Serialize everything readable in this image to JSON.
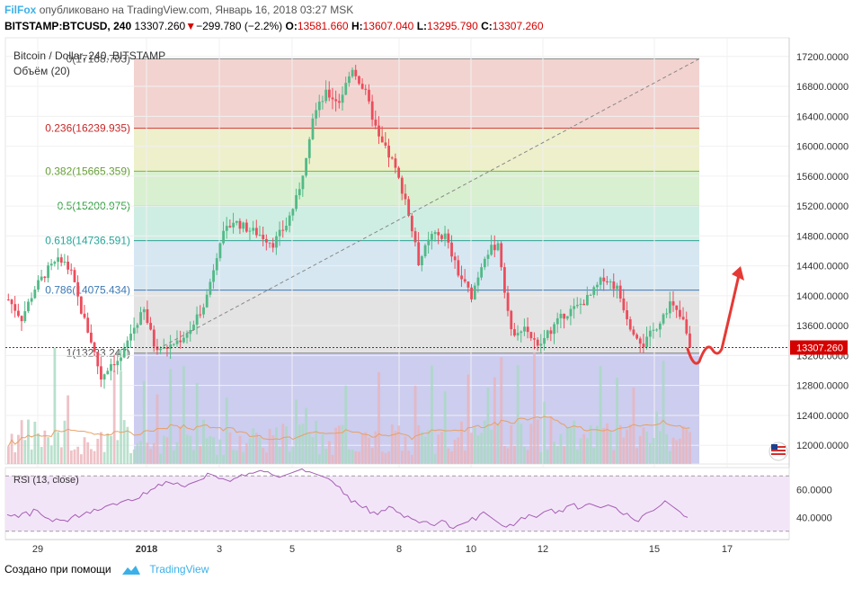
{
  "header": {
    "brand": "FilFox",
    "published": "опубликовано на TradingView.com, Январь 16, 2018 03:27 MSK"
  },
  "quote": {
    "symbol": "BITSTAMP:BTCUSD, 240",
    "last": "13307.260",
    "change": "−299.780 (−2.2%)",
    "o_label": "O:",
    "o": "13581.660",
    "h_label": "H:",
    "h": "13607.040",
    "l_label": "L:",
    "l": "13295.790",
    "c_label": "C:",
    "c": "13307.260"
  },
  "footer": {
    "created": "Создано при помощи",
    "tradingview": "TradingView"
  },
  "colors": {
    "up": "#53b987",
    "down": "#eb4d5c",
    "price_line": "#d50000",
    "rsi_line": "#a45fb3",
    "volume_ma": "#e8a064"
  },
  "chart_data": {
    "type": "candlestick",
    "pane_title": "Bitcoin / Dollar, 240, BITSTAMP",
    "volume_label": "Объём (20)",
    "current_price": 13307.26,
    "current_price_label": "13307.260",
    "y_ticks": [
      {
        "v": 17200,
        "label": "17200.0000"
      },
      {
        "v": 16800,
        "label": "16800.0000"
      },
      {
        "v": 16400,
        "label": "16400.0000"
      },
      {
        "v": 16000,
        "label": "16000.0000"
      },
      {
        "v": 15600,
        "label": "15600.0000"
      },
      {
        "v": 15200,
        "label": "15200.0000"
      },
      {
        "v": 14800,
        "label": "14800.0000"
      },
      {
        "v": 14400,
        "label": "14400.0000"
      },
      {
        "v": 14000,
        "label": "14000.0000"
      },
      {
        "v": 13600,
        "label": "13600.0000"
      },
      {
        "v": 13200,
        "label": "13200.0000"
      },
      {
        "v": 12800,
        "label": "12800.0000"
      },
      {
        "v": 12400,
        "label": "12400.0000"
      },
      {
        "v": 12000,
        "label": "12000.0000"
      }
    ],
    "y_range": [
      11750,
      17450
    ],
    "x_ticks": [
      "29",
      "2018",
      "3",
      "5",
      "8",
      "10",
      "12",
      "15",
      "17"
    ],
    "fib_levels": [
      {
        "ratio": 0,
        "price": 17168.703,
        "label": "0(17168.703)",
        "line": "#888888",
        "fill": "#f2d3d0",
        "text": "#555555"
      },
      {
        "ratio": 0.236,
        "price": 16239.935,
        "label": "0.236(16239.935)",
        "line": "#d23a3a",
        "fill": "#eef0cc",
        "text": "#c62828"
      },
      {
        "ratio": 0.382,
        "price": 15665.359,
        "label": "0.382(15665.359)",
        "line": "#7db340",
        "fill": "#d8f0cf",
        "text": "#689f38"
      },
      {
        "ratio": 0.5,
        "price": 15200.975,
        "label": "0.5(15200.975)",
        "line": "#3aa84a",
        "fill": "#cfeee3",
        "text": "#2e9e3e"
      },
      {
        "ratio": 0.618,
        "price": 14736.591,
        "label": "0.618(14736.591)",
        "line": "#2fa394",
        "fill": "#d6e7f2",
        "text": "#26a69a"
      },
      {
        "ratio": 0.786,
        "price": 14075.434,
        "label": "0.786(14075.434)",
        "line": "#3b78b8",
        "fill": "#e3e3e3",
        "text": "#3c78b4"
      },
      {
        "ratio": 1,
        "price": 13233.247,
        "label": "1(13233.247)",
        "line": "#888888",
        "fill": "#cccdef",
        "text": "#555555"
      }
    ],
    "trend_line": {
      "from": [
        13233.247
      ],
      "to": [
        17168.703
      ]
    },
    "forecast_arrow": "up",
    "rsi": {
      "label": "RSI (13, close)",
      "ticks": [
        {
          "v": 60,
          "label": "60.0000"
        },
        {
          "v": 40,
          "label": "40.0000"
        }
      ],
      "bands": [
        70,
        30
      ],
      "range": [
        24,
        76
      ],
      "values": [
        42,
        41,
        42,
        40,
        43,
        44,
        41,
        46,
        45,
        42,
        40,
        39,
        37,
        39,
        38,
        38,
        37,
        40,
        42,
        40,
        42,
        44,
        43,
        46,
        45,
        46,
        48,
        49,
        50,
        49,
        51,
        52,
        53,
        52,
        53,
        54,
        58,
        57,
        60,
        61,
        64,
        63,
        66,
        65,
        64,
        65,
        63,
        62,
        64,
        65,
        66,
        67,
        68,
        72,
        71,
        70,
        68,
        68,
        67,
        66,
        68,
        69,
        71,
        70,
        72,
        72,
        73,
        74,
        73,
        73,
        71,
        70,
        69,
        70,
        71,
        72,
        73,
        74,
        75,
        73,
        73,
        72,
        71,
        70,
        69,
        68,
        66,
        63,
        62,
        57,
        56,
        51,
        52,
        49,
        47,
        48,
        43,
        44,
        42,
        45,
        45,
        48,
        47,
        44,
        43,
        40,
        41,
        39,
        38,
        36,
        37,
        37,
        35,
        34,
        36,
        38,
        37,
        33,
        32,
        34,
        35,
        36,
        37,
        40,
        38,
        42,
        44,
        42,
        40,
        38,
        36,
        34,
        33,
        35,
        34,
        37,
        40,
        39,
        42,
        41,
        40,
        42,
        44,
        45,
        46,
        43,
        45,
        44,
        48,
        49,
        50,
        46,
        47,
        49,
        50,
        49,
        48,
        47,
        48,
        49,
        48,
        47,
        44,
        42,
        43,
        40,
        38,
        37,
        41,
        43,
        44,
        45,
        47,
        49,
        52,
        50,
        48,
        46,
        44,
        41,
        40
      ]
    }
  }
}
